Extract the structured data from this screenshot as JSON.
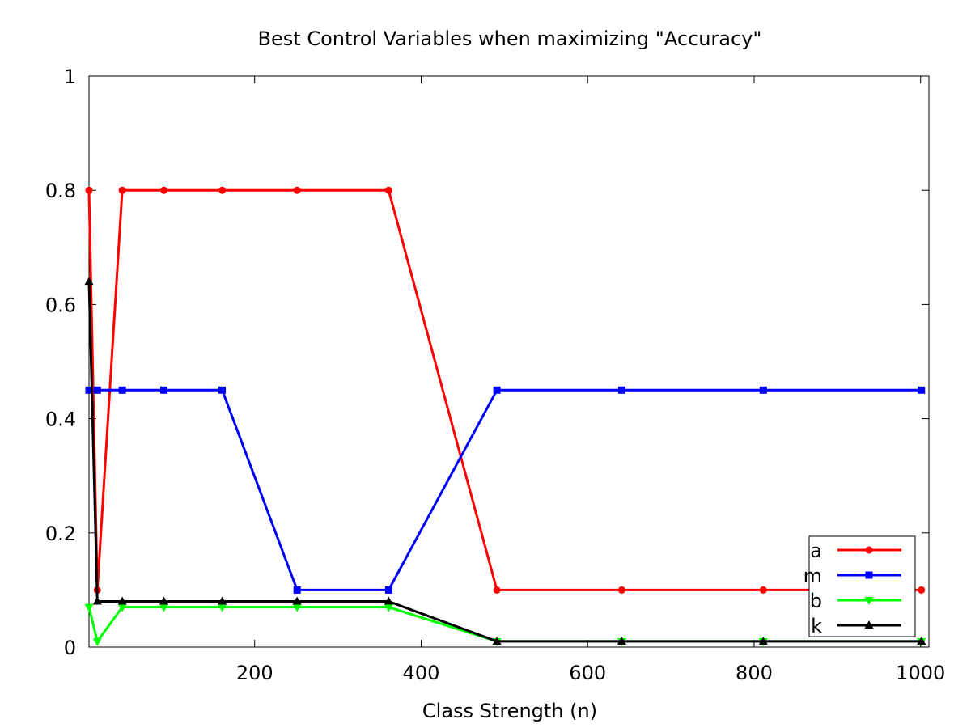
{
  "chart_data": {
    "type": "line",
    "title": "Best Control Variables when maximizing \"Accuracy\"",
    "xlabel": "Class Strength (n)",
    "ylabel": "",
    "xlim": [
      1,
      1010
    ],
    "ylim": [
      0,
      1
    ],
    "xticks": [
      200,
      400,
      600,
      800,
      1000
    ],
    "yticks": [
      0,
      0.2,
      0.4,
      0.6,
      0.8,
      1
    ],
    "ytick_labels": [
      "0",
      "0.2",
      "0.4",
      "0.6",
      "0.8",
      "1"
    ],
    "xtick_labels": [
      "200",
      "400",
      "600",
      "800",
      "1000"
    ],
    "grid": false,
    "legend_position": "bottom-right",
    "x": [
      1,
      11,
      41,
      91,
      161,
      251,
      361,
      491,
      641,
      811,
      1001
    ],
    "series": [
      {
        "name": "a",
        "color": "#ff0000",
        "marker": "circle",
        "values": [
          0.8,
          0.1,
          0.8,
          0.8,
          0.8,
          0.8,
          0.8,
          0.1,
          0.1,
          0.1,
          0.1
        ]
      },
      {
        "name": "m",
        "color": "#0000ff",
        "marker": "square",
        "values": [
          0.45,
          0.45,
          0.45,
          0.45,
          0.45,
          0.1,
          0.1,
          0.45,
          0.45,
          0.45,
          0.45
        ]
      },
      {
        "name": "b",
        "color": "#00ff00",
        "marker": "triangle-down",
        "values": [
          0.07,
          0.01,
          0.07,
          0.07,
          0.07,
          0.07,
          0.07,
          0.01,
          0.01,
          0.01,
          0.01
        ]
      },
      {
        "name": "k",
        "color": "#000000",
        "marker": "triangle-up",
        "values": [
          0.64,
          0.08,
          0.08,
          0.08,
          0.08,
          0.08,
          0.08,
          0.01,
          0.01,
          0.01,
          0.01
        ]
      }
    ]
  }
}
